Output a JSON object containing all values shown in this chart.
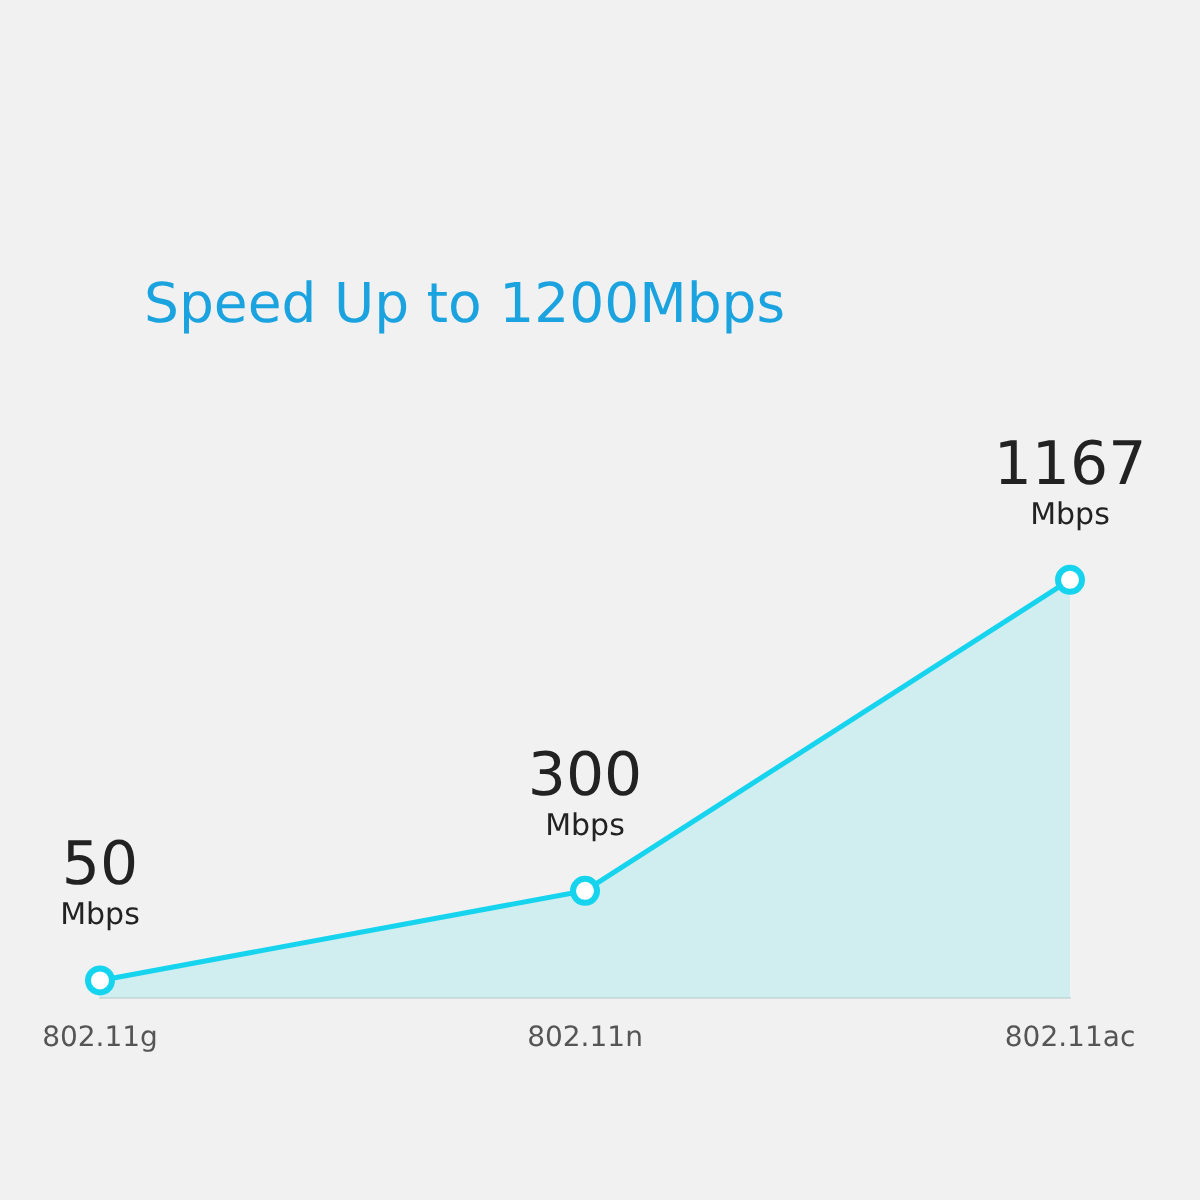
{
  "chart_data": {
    "type": "area",
    "title": "Speed Up to 1200Mbps",
    "categories": [
      "802.11g",
      "802.11n",
      "802.11ac"
    ],
    "values": [
      50,
      300,
      1167
    ],
    "color": "#17d4ee",
    "value_labels": [
      "50\nMbps",
      "300\nMbps",
      "1167\nMbps"
    ],
    "marker": "circle",
    "grid": false,
    "legend": false
  }
}
